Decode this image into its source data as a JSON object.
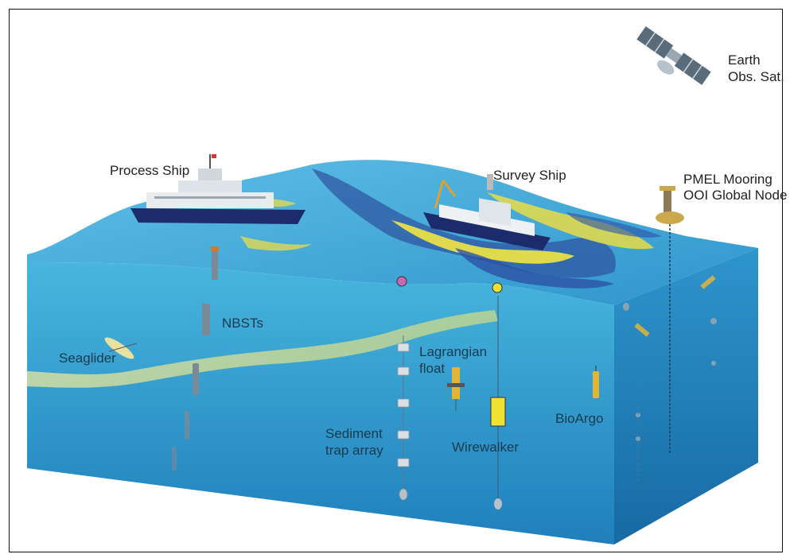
{
  "labels": {
    "satellite_line1": "Earth",
    "satellite_line2": "Obs. Sat.",
    "process_ship": "Process Ship",
    "survey_ship": "Survey Ship",
    "mooring_line1": "PMEL Mooring",
    "mooring_line2": "OOI Global Node",
    "nbsts": "NBSTs",
    "seaglider": "Seaglider",
    "lagrangian_line1": "Lagrangian",
    "lagrangian_line2": "float",
    "sediment_line1": "Sediment",
    "sediment_line2": "trap array",
    "wirewalker": "Wirewalker",
    "bioargo": "BioArgo"
  },
  "colors": {
    "ocean_top": "#3f9fd0",
    "ocean_front": "#2a8cc4",
    "ocean_side": "#1f79b0",
    "eddy_dark": "#2a4aa0",
    "eddy_yellow": "#f2e24a",
    "layer_yellow": "#e9e48a",
    "ship_hull": "#1c2b6b"
  }
}
